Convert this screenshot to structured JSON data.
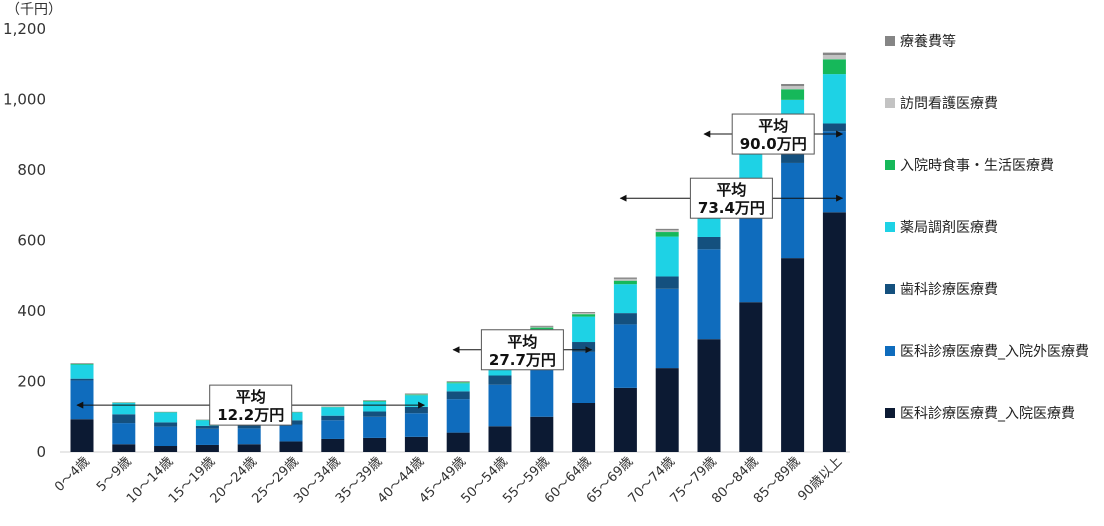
{
  "chart_data": {
    "type": "bar",
    "stacked": true,
    "unit_label": "（千円）",
    "ylim": [
      0,
      1200
    ],
    "yticks": [
      0,
      200,
      400,
      600,
      800,
      1000,
      1200
    ],
    "ytick_labels": [
      "0",
      "200",
      "400",
      "600",
      "800",
      "1,000",
      "1,200"
    ],
    "grid": false,
    "legend_position": "right",
    "categories": [
      "0～4歳",
      "5～9歳",
      "10～14歳",
      "15～19歳",
      "20～24歳",
      "25～29歳",
      "30～34歳",
      "35～39歳",
      "40～44歳",
      "45～49歳",
      "50～54歳",
      "55～59歳",
      "60～64歳",
      "65～69歳",
      "70～74歳",
      "75～79歳",
      "80～84歳",
      "85～89歳",
      "90歳以上"
    ],
    "series": [
      {
        "name": "医科診療医療費_入院医療費",
        "color": "#0c1a33",
        "values": [
          93,
          22,
          17,
          20,
          22,
          30,
          37,
          40,
          43,
          55,
          73,
          100,
          139,
          182,
          238,
          320,
          425,
          550,
          680
        ]
      },
      {
        "name": "医科診療医療費_入院外医療費",
        "color": "#0f6cbd",
        "values": [
          110,
          60,
          55,
          46,
          45,
          48,
          53,
          60,
          67,
          95,
          118,
          150,
          145,
          180,
          225,
          255,
          300,
          270,
          230
        ]
      },
      {
        "name": "歯科診療医療費",
        "color": "#14507e",
        "values": [
          5,
          25,
          12,
          8,
          10,
          12,
          13,
          15,
          18,
          22,
          26,
          30,
          28,
          32,
          35,
          35,
          32,
          27,
          22
        ]
      },
      {
        "name": "薬局調剤医療費",
        "color": "#1ed2e5",
        "values": [
          40,
          32,
          28,
          16,
          22,
          22,
          24,
          28,
          33,
          23,
          25,
          68,
          72,
          82,
          113,
          125,
          130,
          152,
          140
        ]
      },
      {
        "name": "入院時食事・生活医療費",
        "color": "#16b85a",
        "values": [
          2,
          1,
          1,
          1,
          1,
          1,
          1,
          2,
          2,
          3,
          4,
          5,
          7,
          10,
          13,
          17,
          22,
          30,
          42
        ]
      },
      {
        "name": "訪問看護医療費",
        "color": "#c3c3c3",
        "values": [
          0,
          0,
          0,
          0,
          0,
          0,
          0,
          0,
          1,
          1,
          2,
          2,
          3,
          5,
          5,
          6,
          7,
          9,
          12
        ]
      },
      {
        "name": "療養費等",
        "color": "#858585",
        "values": [
          2,
          1,
          1,
          1,
          1,
          1,
          1,
          2,
          2,
          2,
          2,
          3,
          3,
          4,
          4,
          5,
          5,
          6,
          7
        ]
      }
    ],
    "legend_order": [
      "療養費等",
      "訪問看護医療費",
      "入院時食事・生活医療費",
      "薬局調剤医療費",
      "歯科診療医療費",
      "医科診療医療費_入院外医療費",
      "医科診療医療費_入院医療費"
    ],
    "annotations": [
      {
        "line1": "平均",
        "line2": "12.2万円",
        "from_category": 0,
        "to_category": 8,
        "y_value": 133
      },
      {
        "line1": "平均",
        "line2": "27.7万円",
        "from_category": 9,
        "to_category": 12,
        "y_value": 290
      },
      {
        "line1": "平均",
        "line2": "73.4万円",
        "from_category": 13,
        "to_category": 18,
        "y_value": 720
      },
      {
        "line1": "平均",
        "line2": "90.0万円",
        "from_category": 15,
        "to_category": 18,
        "y_value": 902
      }
    ]
  }
}
